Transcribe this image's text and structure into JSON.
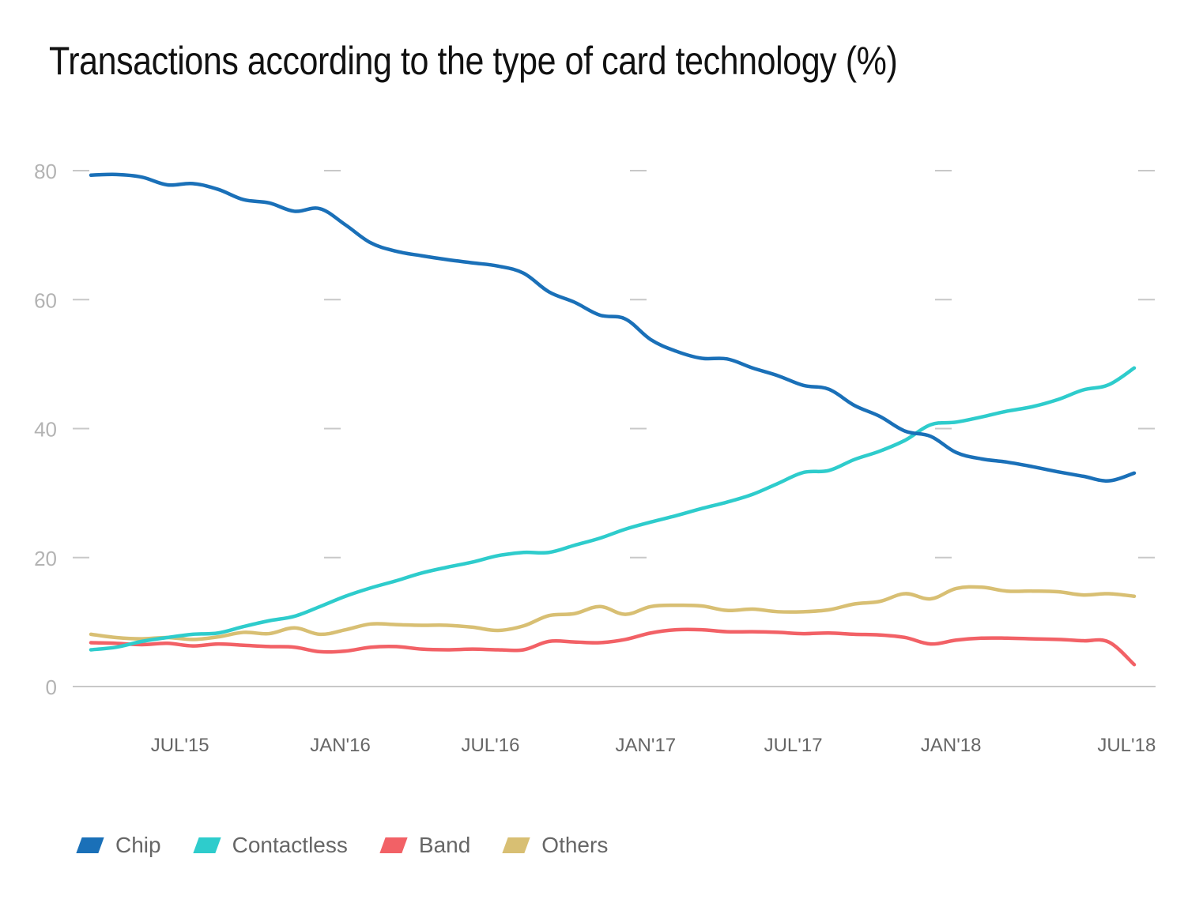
{
  "chart_data": {
    "type": "line",
    "title": "Transactions according to the type of card technology (%)",
    "xlabel": "",
    "ylabel": "",
    "ylim": [
      0,
      80
    ],
    "yticks": [
      0,
      20,
      40,
      60,
      80
    ],
    "grid": "short dash marks at each y tick",
    "legend_position": "bottom-left",
    "x_tick_labels": [
      {
        "label": "JUL'15",
        "index": 3.5
      },
      {
        "label": "JAN'16",
        "index": 9.8
      },
      {
        "label": "JUL'16",
        "index": 15.7
      },
      {
        "label": "JAN'17",
        "index": 21.8
      },
      {
        "label": "JUL'17",
        "index": 27.6
      },
      {
        "label": "JAN'18",
        "index": 33.8
      },
      {
        "label": "JUL'18",
        "index": 40.7
      }
    ],
    "n_points": 42,
    "series": [
      {
        "name": "Chip",
        "color": "#1a70b8",
        "values": [
          79.3,
          79.4,
          79.0,
          77.8,
          78.0,
          77.1,
          75.5,
          75.0,
          73.7,
          74.1,
          71.6,
          68.8,
          67.5,
          66.8,
          66.2,
          65.7,
          65.2,
          64.1,
          61.2,
          59.6,
          57.6,
          57.0,
          53.8,
          52.0,
          50.9,
          50.8,
          49.4,
          48.2,
          46.7,
          46.1,
          43.6,
          41.9,
          39.6,
          38.8,
          36.3,
          35.3,
          34.8,
          34.1,
          33.3,
          32.6,
          31.9,
          33.1
        ]
      },
      {
        "name": "Contactless",
        "color": "#2ecccc",
        "values": [
          5.7,
          6.1,
          7.0,
          7.6,
          8.1,
          8.3,
          9.3,
          10.2,
          10.9,
          12.4,
          14.0,
          15.3,
          16.4,
          17.6,
          18.5,
          19.3,
          20.3,
          20.8,
          20.8,
          21.9,
          23.0,
          24.4,
          25.5,
          26.5,
          27.6,
          28.6,
          29.8,
          31.5,
          33.2,
          33.5,
          35.2,
          36.5,
          38.2,
          40.6,
          41.0,
          41.8,
          42.7,
          43.4,
          44.5,
          46.0,
          46.8,
          49.4
        ]
      },
      {
        "name": "Band",
        "color": "#f26166",
        "values": [
          6.8,
          6.7,
          6.5,
          6.7,
          6.3,
          6.6,
          6.4,
          6.2,
          6.1,
          5.4,
          5.5,
          6.1,
          6.2,
          5.8,
          5.7,
          5.8,
          5.7,
          5.7,
          7.0,
          6.9,
          6.8,
          7.3,
          8.3,
          8.8,
          8.8,
          8.5,
          8.5,
          8.4,
          8.2,
          8.3,
          8.1,
          8.0,
          7.6,
          6.6,
          7.2,
          7.5,
          7.5,
          7.4,
          7.3,
          7.1,
          6.9,
          3.4
        ]
      },
      {
        "name": "Others",
        "color": "#d8bf73",
        "values": [
          8.1,
          7.6,
          7.4,
          7.6,
          7.3,
          7.7,
          8.4,
          8.2,
          9.1,
          8.1,
          8.8,
          9.7,
          9.6,
          9.5,
          9.5,
          9.2,
          8.7,
          9.4,
          11.0,
          11.3,
          12.4,
          11.2,
          12.4,
          12.6,
          12.5,
          11.8,
          12.0,
          11.6,
          11.6,
          11.9,
          12.8,
          13.2,
          14.4,
          13.6,
          15.2,
          15.4,
          14.8,
          14.8,
          14.7,
          14.2,
          14.4,
          14.0
        ]
      }
    ]
  }
}
